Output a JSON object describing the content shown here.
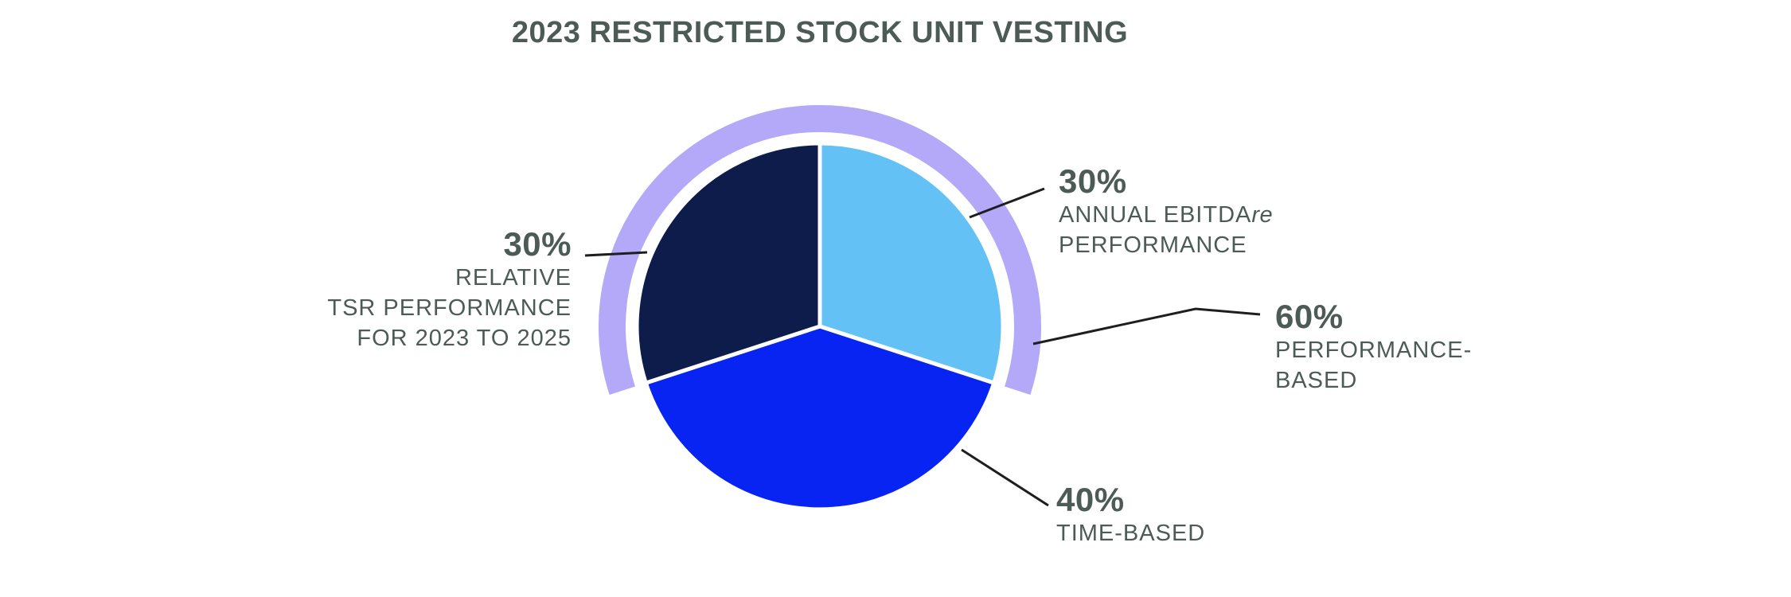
{
  "title": "2023 RESTRICTED STOCK UNIT VESTING",
  "colors": {
    "text": "#4d5b56",
    "leader_line": "#1d1e20",
    "slice_ebitda": "#63c1f6",
    "slice_time": "#0724f3",
    "slice_tsr": "#0e1c4c",
    "performance_arc": "#b4a9f8",
    "background": "#ffffff",
    "slice_gap": "#ffffff"
  },
  "chart_data": {
    "type": "pie",
    "title": "2023 RESTRICTED STOCK UNIT VESTING",
    "start_at": "12-o-clock, clockwise",
    "slices": [
      {
        "id": "ebitda",
        "label": "ANNUAL EBITDAre PERFORMANCE",
        "value": 30,
        "color": "#63c1f6"
      },
      {
        "id": "time",
        "label": "TIME-BASED",
        "value": 40,
        "color": "#0724f3"
      },
      {
        "id": "tsr",
        "label": "RELATIVE TSR PERFORMANCE FOR 2023 TO 2025",
        "value": 30,
        "color": "#0e1c4c"
      }
    ],
    "outer_arc": {
      "label": "PERFORMANCE-BASED",
      "value": 60,
      "color": "#b4a9f8",
      "position": "centered over top of pie"
    },
    "legend_position": "callouts with leader lines",
    "grid": false
  },
  "callouts": {
    "tsr": {
      "pct": "30%",
      "lines": [
        "RELATIVE",
        "TSR PERFORMANCE",
        "FOR 2023 TO 2025"
      ]
    },
    "ebitda": {
      "pct": "30%",
      "line1_pre": "ANNUAL EBITDA",
      "line1_italic": "re",
      "line2": "PERFORMANCE"
    },
    "perf": {
      "pct": "60%",
      "lines": [
        "PERFORMANCE-",
        "BASED"
      ]
    },
    "time": {
      "pct": "40%",
      "lines": [
        "TIME-BASED"
      ]
    }
  }
}
